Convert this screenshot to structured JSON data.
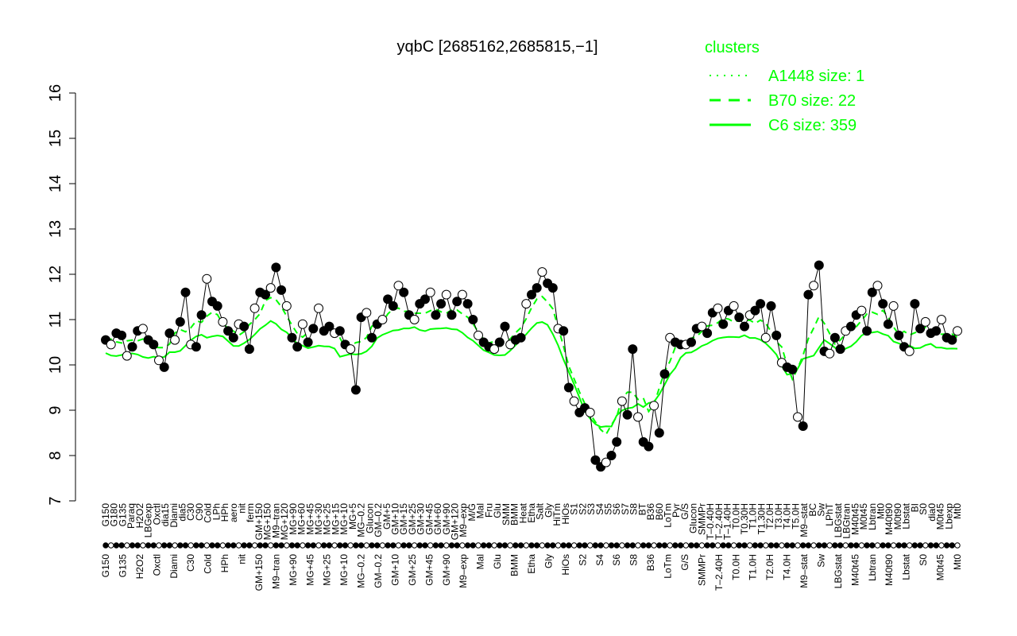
{
  "chart_data": {
    "type": "line",
    "title": "yqbC [2685162,2685815,−1]",
    "ylim": [
      7,
      16
    ],
    "yticks": [
      7,
      8,
      9,
      10,
      11,
      12,
      13,
      14,
      15,
      16
    ],
    "x_tick_labels": [
      "G150",
      "G180",
      "G135",
      "Paraq",
      "H2O2",
      "LBGexp",
      "Oxctl",
      "dia15",
      "Diami",
      "dia5",
      "C30",
      "C90",
      "Cold",
      "LPh",
      "HPh",
      "aero",
      "nit",
      "ferm",
      "GM+150",
      "MG+150",
      "M9–tran",
      "MG+120",
      "MG+90",
      "MG+60",
      "MG+45",
      "MG+30",
      "MG+25",
      "MG+15",
      "MG+10",
      "MG+5",
      "MG–0.2",
      "Glucon",
      "GM–0.2",
      "GM+5",
      "GM+10",
      "GM+15",
      "GM+25",
      "GM+30",
      "GM+45",
      "GM+60",
      "GM+90",
      "GM+120",
      "M9–exp",
      "M/G",
      "Mal",
      "Fru",
      "Glu",
      "SMM",
      "BMM",
      "Heat",
      "Etha",
      "Salt",
      "Gly",
      "HiTm",
      "HiOs",
      "S1",
      "S2",
      "S3",
      "S4",
      "S5",
      "S6",
      "S7",
      "S8",
      "BT",
      "B36",
      "B60",
      "LoTm",
      "Pyr",
      "G/S",
      "Glucon",
      "SMMPr",
      "T–0.40H",
      "T–2.40H",
      "T–1.40H",
      "T0.0H",
      "T0.30H",
      "T1.0H",
      "T1.30H",
      "T2.0H",
      "T3.0H",
      "T4.0H",
      "T5.0H",
      "M9–stat",
      "BC",
      "Sw",
      "LPhT",
      "LBGstat",
      "LBGtran",
      "M40t45",
      "M0t45",
      "Lbtran",
      "Mt0",
      "M40t90",
      "M0t90",
      "Lbstat",
      "BI",
      "S0",
      "dia0",
      "M0t45",
      "Lbexp",
      "Mt0"
    ],
    "clusters_legend": {
      "title": "clusters",
      "entries": [
        "A1448 size: 1",
        "B70 size: 22",
        "C6 size: 359"
      ]
    },
    "series": [
      {
        "name": "yqbC",
        "values": [
          10.55,
          10.45,
          10.7,
          10.65,
          10.2,
          10.4,
          10.75,
          10.8,
          10.55,
          10.45,
          10.1,
          9.95,
          10.7,
          10.55,
          10.95,
          11.6,
          10.45,
          10.4,
          11.1,
          11.9,
          11.4,
          11.3,
          10.95,
          10.75,
          10.6,
          10.9,
          10.85,
          10.35,
          11.25,
          11.6,
          11.55,
          11.7,
          12.15,
          11.65,
          11.3,
          10.6,
          10.4,
          10.9,
          10.5,
          10.8,
          11.25,
          10.75,
          10.85,
          10.7,
          10.75,
          10.45,
          10.35,
          9.45,
          11.05,
          11.15,
          10.6,
          10.9,
          11.0,
          11.45,
          11.3,
          11.75,
          11.6,
          11.1,
          11.0,
          11.35,
          11.45,
          11.6,
          11.1,
          11.35,
          11.55,
          11.1,
          11.4,
          11.55,
          11.35,
          11.0,
          10.65,
          10.5,
          10.4,
          10.35,
          10.5,
          10.85,
          10.45,
          10.55,
          10.6,
          11.35,
          11.55,
          11.7,
          12.05,
          11.8,
          11.7,
          10.8,
          10.75,
          9.5,
          9.2,
          8.95,
          9.05,
          8.95,
          7.9,
          7.75,
          7.85,
          8.0,
          8.3,
          9.2,
          8.9,
          10.35,
          8.85,
          8.3,
          8.2,
          9.1,
          8.5,
          9.8,
          10.6,
          10.5,
          10.45,
          10.45,
          10.5,
          10.8,
          10.85,
          10.7,
          11.15,
          11.25,
          10.9,
          11.2,
          11.3,
          11.05,
          10.85,
          11.1,
          11.2,
          11.35,
          10.6,
          11.3,
          10.65,
          10.05,
          9.95,
          9.9,
          8.85,
          8.65,
          11.55,
          11.75,
          12.2,
          10.3,
          10.25,
          10.6,
          10.35,
          10.75,
          10.85,
          11.1,
          11.2,
          10.75,
          11.6,
          11.75,
          11.35,
          10.9,
          11.3,
          10.65,
          10.4,
          10.3,
          11.35,
          10.8,
          10.95,
          10.7,
          10.75,
          11.0,
          10.6,
          10.55,
          10.75
        ]
      }
    ]
  }
}
